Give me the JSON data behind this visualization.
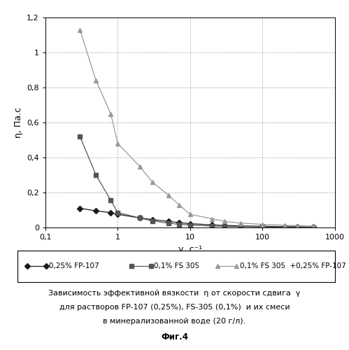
{
  "series1_label": "0,25% FP-107",
  "series1_x": [
    0.3,
    0.5,
    0.8,
    1.0,
    2.0,
    3.0,
    5.0,
    7.0,
    10.0,
    20.0,
    30.0,
    50.0,
    100.0,
    200.0,
    300.0,
    500.0
  ],
  "series1_y": [
    0.11,
    0.095,
    0.085,
    0.075,
    0.055,
    0.045,
    0.035,
    0.028,
    0.022,
    0.015,
    0.012,
    0.009,
    0.007,
    0.005,
    0.004,
    0.003
  ],
  "series1_color": "#1a1a1a",
  "series1_marker": "D",
  "series2_label": "0,1% FS 305",
  "series2_x": [
    0.3,
    0.5,
    0.8,
    1.0,
    2.0,
    3.0,
    5.0,
    7.0,
    10.0,
    20.0,
    30.0,
    50.0,
    100.0,
    200.0,
    300.0,
    500.0
  ],
  "series2_y": [
    0.52,
    0.3,
    0.155,
    0.085,
    0.055,
    0.038,
    0.025,
    0.018,
    0.014,
    0.008,
    0.006,
    0.005,
    0.003,
    0.002,
    0.002,
    0.002
  ],
  "series2_color": "#555555",
  "series2_marker": "s",
  "series3_label": "0,1% FS 305  +0,25% FP-107",
  "series3_x": [
    0.3,
    0.5,
    0.8,
    1.0,
    2.0,
    3.0,
    5.0,
    7.0,
    10.0,
    20.0,
    30.0,
    50.0,
    100.0,
    200.0,
    300.0,
    500.0
  ],
  "series3_y": [
    1.13,
    0.84,
    0.65,
    0.48,
    0.35,
    0.26,
    0.185,
    0.13,
    0.075,
    0.05,
    0.035,
    0.025,
    0.018,
    0.013,
    0.01,
    0.008
  ],
  "series3_color": "#999999",
  "series3_marker": "^",
  "xlabel": "γ, с⁻¹",
  "ylabel": "η, Па.с",
  "xlim": [
    0.1,
    1000
  ],
  "ylim": [
    0,
    1.2
  ],
  "yticks": [
    0,
    0.2,
    0.4,
    0.6,
    0.8,
    1.0,
    1.2
  ],
  "ytick_labels": [
    "0",
    "0,2",
    "0,4",
    "0,6",
    "0,8",
    "1",
    "1,2"
  ],
  "xtick_values": [
    0.1,
    1,
    10,
    100,
    1000
  ],
  "xtick_labels": [
    "0,1",
    "1",
    "10",
    "100",
    "1000"
  ],
  "caption_line1": "Зависимость эффективной вязкости  η от скорости сдвига  γ",
  "caption_line2": "для растворов FP-107 (0,25%), FS-305 (0,1%)  и их смеси",
  "caption_line3": "в минерализованной воде (20 г/л).",
  "caption_fig": "Фиг.4"
}
